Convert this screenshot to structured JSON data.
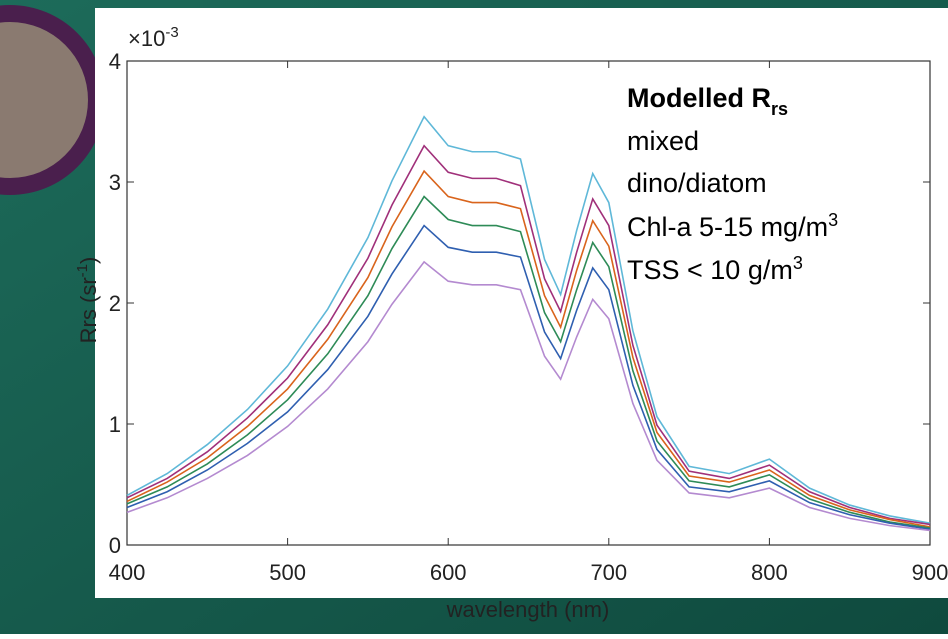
{
  "chart_data": {
    "type": "line",
    "y_multiplier": {
      "base": "×10",
      "exponent": "-3"
    },
    "xlabel": "wavelength (nm)",
    "ylabel": {
      "text": "Rrs (sr",
      "exponent": "-1",
      "close": ")"
    },
    "annotation": {
      "title": {
        "text": "Modelled R",
        "subscript": "rs"
      },
      "lines": [
        {
          "text": "mixed"
        },
        {
          "text": "dino/diatom"
        },
        {
          "text": "Chl-a 5-15 mg/m",
          "superscript": "3"
        },
        {
          "text": "TSS < 10 g/m",
          "superscript": "3"
        }
      ]
    },
    "x": [
      400,
      425,
      450,
      475,
      500,
      525,
      550,
      565,
      585,
      600,
      615,
      630,
      645,
      660,
      670,
      680,
      690,
      700,
      715,
      730,
      750,
      775,
      800,
      825,
      850,
      875,
      900
    ],
    "series": [
      {
        "color": "#5fb8d8",
        "values": [
          0.41,
          0.59,
          0.83,
          1.12,
          1.48,
          1.95,
          2.54,
          3.01,
          3.54,
          3.3,
          3.25,
          3.25,
          3.19,
          2.36,
          2.07,
          2.6,
          3.07,
          2.83,
          1.77,
          1.06,
          0.65,
          0.59,
          0.71,
          0.47,
          0.33,
          0.24,
          0.18
        ]
      },
      {
        "color": "#a0307a",
        "values": [
          0.39,
          0.55,
          0.77,
          1.05,
          1.38,
          1.82,
          2.37,
          2.81,
          3.3,
          3.08,
          3.03,
          3.03,
          2.97,
          2.2,
          1.93,
          2.42,
          2.86,
          2.64,
          1.65,
          0.99,
          0.61,
          0.55,
          0.66,
          0.44,
          0.31,
          0.22,
          0.17
        ]
      },
      {
        "color": "#d9641c",
        "values": [
          0.36,
          0.52,
          0.72,
          0.98,
          1.29,
          1.7,
          2.21,
          2.63,
          3.09,
          2.88,
          2.83,
          2.83,
          2.78,
          2.06,
          1.8,
          2.27,
          2.68,
          2.47,
          1.55,
          0.93,
          0.57,
          0.52,
          0.62,
          0.41,
          0.29,
          0.21,
          0.15
        ]
      },
      {
        "color": "#2e8b57",
        "values": [
          0.34,
          0.48,
          0.67,
          0.91,
          1.2,
          1.58,
          2.06,
          2.45,
          2.88,
          2.69,
          2.64,
          2.64,
          2.59,
          1.92,
          1.68,
          2.11,
          2.5,
          2.3,
          1.44,
          0.86,
          0.53,
          0.48,
          0.58,
          0.38,
          0.27,
          0.19,
          0.14
        ]
      },
      {
        "color": "#2f5fb0",
        "values": [
          0.31,
          0.44,
          0.62,
          0.84,
          1.1,
          1.45,
          1.89,
          2.24,
          2.64,
          2.46,
          2.42,
          2.42,
          2.38,
          1.76,
          1.54,
          1.94,
          2.29,
          2.11,
          1.32,
          0.79,
          0.48,
          0.44,
          0.53,
          0.35,
          0.25,
          0.18,
          0.13
        ]
      },
      {
        "color": "#b48ad0",
        "values": [
          0.27,
          0.39,
          0.55,
          0.74,
          0.98,
          1.29,
          1.68,
          1.99,
          2.34,
          2.18,
          2.15,
          2.15,
          2.11,
          1.56,
          1.37,
          1.72,
          2.03,
          1.87,
          1.17,
          0.7,
          0.43,
          0.39,
          0.47,
          0.31,
          0.22,
          0.16,
          0.12
        ]
      }
    ],
    "xlim": [
      400,
      900
    ],
    "ylim": [
      0,
      4
    ],
    "xticks": [
      400,
      500,
      600,
      700,
      800,
      900
    ],
    "yticks": [
      0,
      1,
      2,
      3,
      4
    ],
    "grid": false
  }
}
